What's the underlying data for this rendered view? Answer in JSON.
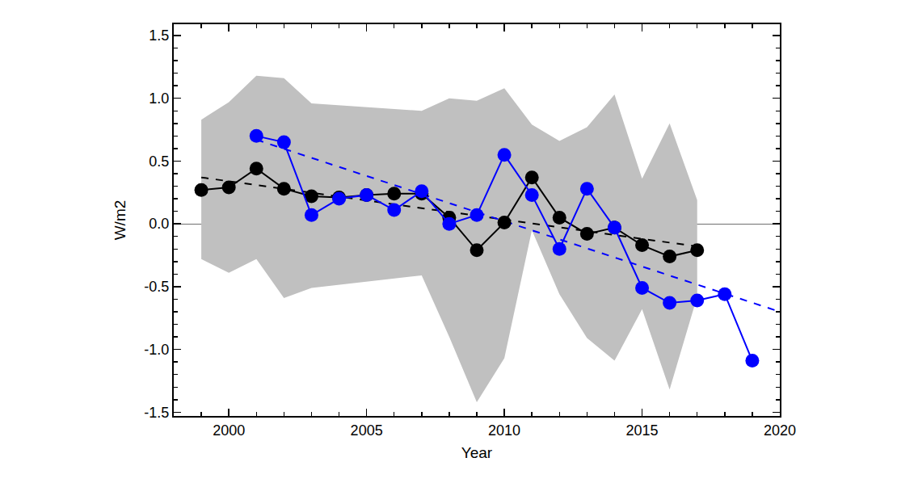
{
  "chart_data": {
    "type": "line",
    "xlabel": "Year",
    "ylabel": "W/m2",
    "xlim": [
      1998,
      2020
    ],
    "xticks": [
      2000,
      2005,
      2010,
      2015,
      2020
    ],
    "ylim": [
      -1.53,
      1.59
    ],
    "yticks": [
      {
        "value": -1.5,
        "label": "-1.5"
      },
      {
        "value": -1,
        "label": "-1.0"
      },
      {
        "value": -0.5,
        "label": "-0.5"
      },
      {
        "value": 0,
        "label": "0.0"
      },
      {
        "value": 0.5,
        "label": "0.5"
      },
      {
        "value": 1,
        "label": "1.0"
      },
      {
        "value": 1.5,
        "label": "1.5"
      }
    ],
    "grid": false,
    "band": {
      "color": "#c0c0c0",
      "x": [
        1999,
        2000,
        2001,
        2002,
        2003,
        2007,
        2008,
        2009,
        2010,
        2011,
        2012,
        2013,
        2014,
        2015,
        2016,
        2017
      ],
      "upper": [
        0.83,
        0.97,
        1.18,
        1.16,
        0.96,
        0.9,
        1.0,
        0.98,
        1.08,
        0.79,
        0.66,
        0.77,
        1.03,
        0.36,
        0.8,
        0.19
      ],
      "lower": [
        -0.28,
        -0.39,
        -0.28,
        -0.59,
        -0.51,
        -0.41,
        -0.9,
        -1.42,
        -1.07,
        -0.05,
        -0.56,
        -0.91,
        -1.09,
        -0.68,
        -1.32,
        -0.58
      ]
    },
    "series": [
      {
        "color": "#000000",
        "marker": "none",
        "line_style": "dashed",
        "x": [
          1999,
          2017
        ],
        "values": [
          0.37,
          -0.18
        ]
      },
      {
        "color": "#0000ff",
        "marker": "none",
        "line_style": "dashed",
        "x": [
          2001,
          2020
        ],
        "values": [
          0.67,
          -0.7
        ]
      },
      {
        "color": "#000000",
        "marker": "circle",
        "line_style": "solid",
        "x": [
          1999,
          2000,
          2001,
          2002,
          2003,
          2004,
          2005,
          2006,
          2007,
          2008,
          2009,
          2010,
          2011,
          2012,
          2013,
          2014,
          2015,
          2016,
          2017
        ],
        "values": [
          0.27,
          0.29,
          0.44,
          0.28,
          0.22,
          0.21,
          0.23,
          0.24,
          0.24,
          0.05,
          -0.21,
          0.01,
          0.37,
          0.05,
          -0.08,
          -0.03,
          -0.17,
          -0.26,
          -0.21
        ]
      },
      {
        "color": "#0000ff",
        "marker": "circle",
        "line_style": "solid",
        "x": [
          2001,
          2002,
          2003,
          2004,
          2005,
          2006,
          2007,
          2008,
          2009,
          2010,
          2011,
          2012,
          2013,
          2014,
          2015,
          2016,
          2017,
          2018,
          2019
        ],
        "values": [
          0.7,
          0.65,
          0.07,
          0.2,
          0.23,
          0.11,
          0.26,
          0.0,
          0.07,
          0.55,
          0.23,
          -0.2,
          0.28,
          -0.03,
          -0.51,
          -0.63,
          -0.61,
          -0.56,
          -1.09
        ]
      }
    ]
  }
}
